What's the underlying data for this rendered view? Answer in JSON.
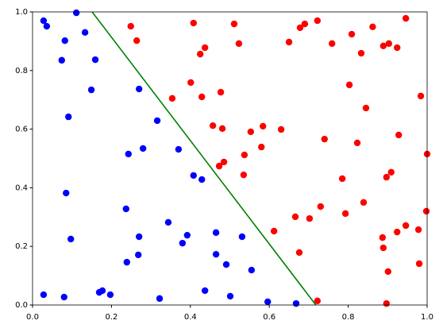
{
  "chart_data": {
    "type": "scatter",
    "xlim": [
      0,
      1
    ],
    "ylim": [
      0,
      1
    ],
    "xticks": [
      {
        "value": 0,
        "label": "0.0"
      },
      0.2,
      0.4,
      0.6,
      0.8,
      {
        "value": 1,
        "label": "1.0"
      }
    ],
    "yticks": [
      {
        "value": 0,
        "label": "0.0"
      },
      0.2,
      0.4,
      0.6,
      0.8,
      {
        "value": 1,
        "label": "1.0"
      }
    ],
    "grid": false,
    "series": [
      {
        "type": "scatter",
        "color": "#0000ff",
        "x": [
          0.028,
          0.036,
          0.111,
          0.133,
          0.082,
          0.074,
          0.159,
          0.149,
          0.27,
          0.091,
          0.316,
          0.28,
          0.243,
          0.37,
          0.408,
          0.429,
          0.085,
          0.097,
          0.237,
          0.27,
          0.268,
          0.239,
          0.344,
          0.392,
          0.38,
          0.465,
          0.531,
          0.465,
          0.491,
          0.555,
          0.028,
          0.08,
          0.169,
          0.177,
          0.197,
          0.322,
          0.437,
          0.501,
          0.596,
          0.668
        ],
        "values": [
          0.97,
          0.951,
          0.997,
          0.93,
          0.902,
          0.835,
          0.837,
          0.734,
          0.737,
          0.642,
          0.629,
          0.534,
          0.515,
          0.531,
          0.442,
          0.428,
          0.382,
          0.225,
          0.328,
          0.233,
          0.171,
          0.146,
          0.282,
          0.238,
          0.211,
          0.247,
          0.233,
          0.173,
          0.138,
          0.119,
          0.035,
          0.027,
          0.043,
          0.049,
          0.035,
          0.022,
          0.049,
          0.03,
          0.011,
          0.005
        ]
      },
      {
        "type": "scatter",
        "color": "#ff0000",
        "x": [
          0.249,
          0.264,
          0.408,
          0.511,
          0.523,
          0.437,
          0.425,
          0.65,
          0.678,
          0.69,
          0.722,
          0.759,
          0.809,
          0.833,
          0.862,
          0.889,
          0.903,
          0.924,
          0.946,
          0.401,
          0.354,
          0.429,
          0.477,
          0.803,
          0.845,
          0.984,
          0.457,
          0.481,
          0.553,
          0.584,
          0.63,
          0.928,
          0.537,
          0.58,
          0.485,
          0.473,
          0.74,
          0.823,
          1.0,
          0.535,
          0.909,
          0.897,
          0.785,
          0.839,
          0.73,
          0.793,
          0.998,
          0.612,
          0.666,
          0.702,
          0.924,
          0.946,
          0.978,
          0.887,
          0.676,
          0.889,
          0.901,
          0.98,
          0.722,
          0.897
        ],
        "values": [
          0.951,
          0.902,
          0.962,
          0.959,
          0.892,
          0.878,
          0.856,
          0.897,
          0.946,
          0.959,
          0.97,
          0.892,
          0.924,
          0.859,
          0.949,
          0.884,
          0.892,
          0.878,
          0.978,
          0.759,
          0.705,
          0.71,
          0.726,
          0.751,
          0.672,
          0.713,
          0.612,
          0.602,
          0.591,
          0.61,
          0.599,
          0.58,
          0.512,
          0.539,
          0.488,
          0.474,
          0.566,
          0.553,
          0.515,
          0.444,
          0.453,
          0.436,
          0.431,
          0.35,
          0.336,
          0.312,
          0.32,
          0.252,
          0.301,
          0.295,
          0.249,
          0.271,
          0.257,
          0.23,
          0.179,
          0.195,
          0.114,
          0.141,
          0.014,
          0.005
        ]
      },
      {
        "type": "line",
        "color": "#008000",
        "x": [
          0.151,
          0.718
        ],
        "values": [
          1,
          0
        ]
      }
    ]
  }
}
